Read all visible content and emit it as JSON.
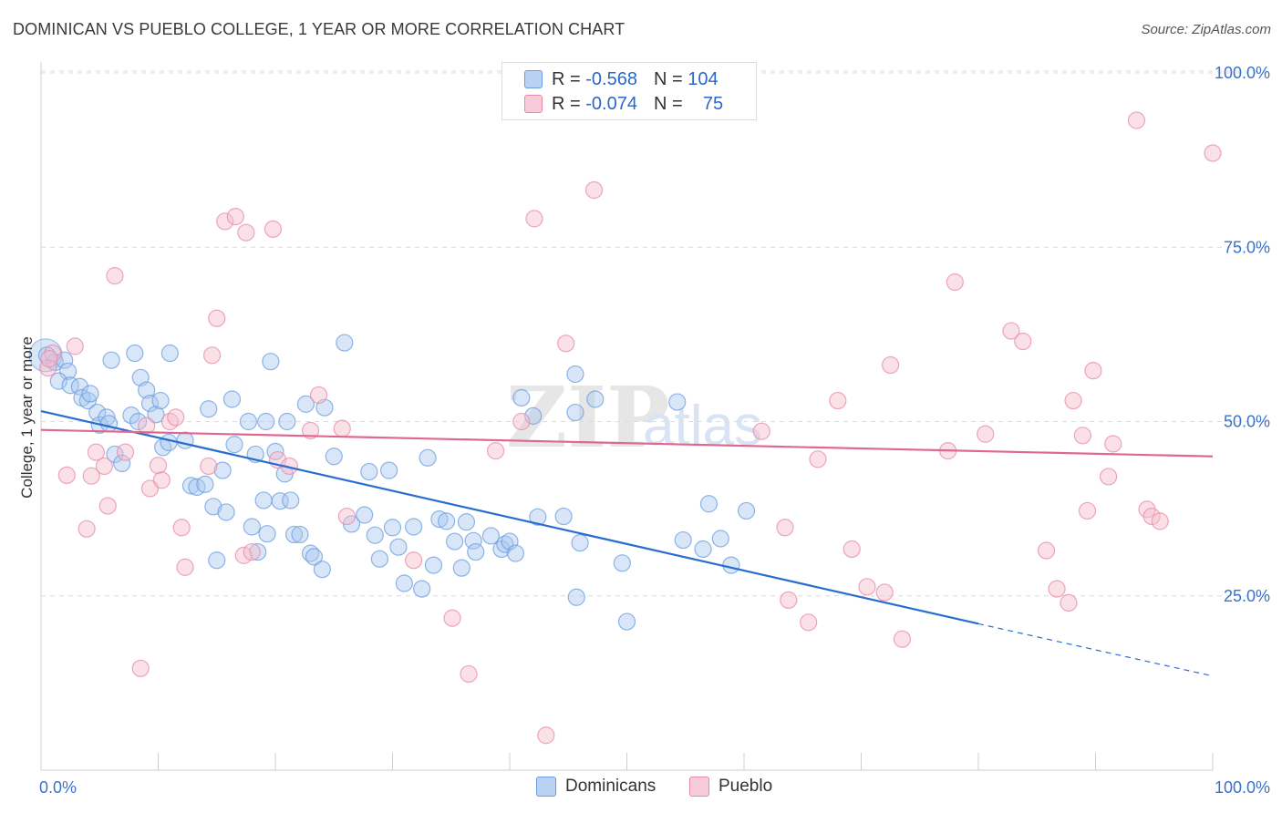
{
  "header": {
    "title": "DOMINICAN VS PUEBLO COLLEGE, 1 YEAR OR MORE CORRELATION CHART",
    "source": "Source: ZipAtlas.com"
  },
  "watermark": "ZIPatlas",
  "legend": {
    "r_label": "R =",
    "n_label": "N =",
    "rows": [
      {
        "r": "-0.568",
        "n": "104"
      },
      {
        "r": "-0.074",
        "n": "75"
      }
    ]
  },
  "colors": {
    "blue_fill": "#a9c8f0",
    "blue_stroke": "#6a9de0",
    "blue_line": "#2a6dd0",
    "pink_fill": "#f5bccd",
    "pink_stroke": "#e88aa8",
    "pink_line": "#e06890",
    "axis_text": "#3a72c8"
  },
  "chart_data": {
    "type": "scatter",
    "title": "DOMINICAN VS PUEBLO COLLEGE, 1 YEAR OR MORE CORRELATION CHART",
    "xlabel": "",
    "ylabel": "College, 1 year or more",
    "x_range": [
      0,
      100
    ],
    "y_range": [
      0,
      100
    ],
    "x_tick_labels": [
      "0.0%",
      "100.0%"
    ],
    "y_ticks": [
      {
        "value": 25,
        "label": "25.0%"
      },
      {
        "value": 50,
        "label": "50.0%"
      },
      {
        "value": 75,
        "label": "75.0%"
      },
      {
        "value": 100,
        "label": "100.0%"
      }
    ],
    "series": [
      {
        "name": "Dominicans",
        "color": "#6a9de0",
        "r": -0.568,
        "n": 104,
        "trend": {
          "x0": 0,
          "y0": 51.5,
          "x1": 80,
          "y1": 21.0,
          "dash_to_x": 100,
          "dash_to_y": 13.5
        },
        "points": [
          [
            0.5,
            59.5
          ],
          [
            1.2,
            58.5
          ],
          [
            2.0,
            58.8
          ],
          [
            2.3,
            57.2
          ],
          [
            1.5,
            55.8
          ],
          [
            2.5,
            55.2
          ],
          [
            3.3,
            55.0
          ],
          [
            3.5,
            53.4
          ],
          [
            4.0,
            53.0
          ],
          [
            4.2,
            54.0
          ],
          [
            4.8,
            51.3
          ],
          [
            5.0,
            49.5
          ],
          [
            5.6,
            50.6
          ],
          [
            5.8,
            49.7
          ],
          [
            6.3,
            45.3
          ],
          [
            6.9,
            44.0
          ],
          [
            6.0,
            58.8
          ],
          [
            8.0,
            59.8
          ],
          [
            8.5,
            56.3
          ],
          [
            9.0,
            54.5
          ],
          [
            9.3,
            52.6
          ],
          [
            7.7,
            50.9
          ],
          [
            8.3,
            50.0
          ],
          [
            9.8,
            51.0
          ],
          [
            10.2,
            53.0
          ],
          [
            10.4,
            46.3
          ],
          [
            10.9,
            47.0
          ],
          [
            11.0,
            59.8
          ],
          [
            12.3,
            47.3
          ],
          [
            12.8,
            40.8
          ],
          [
            13.3,
            40.6
          ],
          [
            14.0,
            41.0
          ],
          [
            14.3,
            51.8
          ],
          [
            14.7,
            37.8
          ],
          [
            15.0,
            30.1
          ],
          [
            15.5,
            43.0
          ],
          [
            15.8,
            37.0
          ],
          [
            16.3,
            53.2
          ],
          [
            16.5,
            46.7
          ],
          [
            17.7,
            50.0
          ],
          [
            18.0,
            34.9
          ],
          [
            18.3,
            45.3
          ],
          [
            18.5,
            31.3
          ],
          [
            19.0,
            38.7
          ],
          [
            19.2,
            50.0
          ],
          [
            19.3,
            33.9
          ],
          [
            19.6,
            58.6
          ],
          [
            20.0,
            45.7
          ],
          [
            20.4,
            38.6
          ],
          [
            20.8,
            42.5
          ],
          [
            21.0,
            50.0
          ],
          [
            21.3,
            38.7
          ],
          [
            21.6,
            33.8
          ],
          [
            22.1,
            33.8
          ],
          [
            22.6,
            52.5
          ],
          [
            23.0,
            31.1
          ],
          [
            23.3,
            30.6
          ],
          [
            24.0,
            28.8
          ],
          [
            24.2,
            52.0
          ],
          [
            25.0,
            45.0
          ],
          [
            25.9,
            61.3
          ],
          [
            26.5,
            35.3
          ],
          [
            27.6,
            36.6
          ],
          [
            28.0,
            42.8
          ],
          [
            28.5,
            33.7
          ],
          [
            28.9,
            30.3
          ],
          [
            29.7,
            43.0
          ],
          [
            30.0,
            34.8
          ],
          [
            30.5,
            32.0
          ],
          [
            31.0,
            26.8
          ],
          [
            31.8,
            34.9
          ],
          [
            32.5,
            26.0
          ],
          [
            33.0,
            44.8
          ],
          [
            33.5,
            29.4
          ],
          [
            34.0,
            36.0
          ],
          [
            34.6,
            35.7
          ],
          [
            35.3,
            32.8
          ],
          [
            35.9,
            29.0
          ],
          [
            36.3,
            35.6
          ],
          [
            36.9,
            32.9
          ],
          [
            37.1,
            31.3
          ],
          [
            38.4,
            33.6
          ],
          [
            39.3,
            31.7
          ],
          [
            39.6,
            32.4
          ],
          [
            40.0,
            32.8
          ],
          [
            40.5,
            31.1
          ],
          [
            41.0,
            53.4
          ],
          [
            42.0,
            50.8
          ],
          [
            42.4,
            36.3
          ],
          [
            44.6,
            36.4
          ],
          [
            45.6,
            56.8
          ],
          [
            45.6,
            51.3
          ],
          [
            45.7,
            24.8
          ],
          [
            46.0,
            32.6
          ],
          [
            47.3,
            53.2
          ],
          [
            49.6,
            29.7
          ],
          [
            50.0,
            21.3
          ],
          [
            54.3,
            52.8
          ],
          [
            54.8,
            33.0
          ],
          [
            56.5,
            31.7
          ],
          [
            57.0,
            38.2
          ],
          [
            58.0,
            33.2
          ],
          [
            58.9,
            29.4
          ],
          [
            60.2,
            37.2
          ]
        ]
      },
      {
        "name": "Pueblo",
        "color": "#e88aa8",
        "r": -0.074,
        "n": 75,
        "trend": {
          "x0": 0,
          "y0": 48.8,
          "x1": 100,
          "y1": 45.0
        },
        "points": [
          [
            0.6,
            57.7
          ],
          [
            1.0,
            59.8
          ],
          [
            2.2,
            42.3
          ],
          [
            2.9,
            60.8
          ],
          [
            3.9,
            34.6
          ],
          [
            4.3,
            42.2
          ],
          [
            4.7,
            45.6
          ],
          [
            5.4,
            43.6
          ],
          [
            5.7,
            37.9
          ],
          [
            6.3,
            70.9
          ],
          [
            7.2,
            45.6
          ],
          [
            8.5,
            14.6
          ],
          [
            9.0,
            49.4
          ],
          [
            9.3,
            40.4
          ],
          [
            10.0,
            43.7
          ],
          [
            10.3,
            41.6
          ],
          [
            11.0,
            50.0
          ],
          [
            11.5,
            50.6
          ],
          [
            12.0,
            34.8
          ],
          [
            12.3,
            29.1
          ],
          [
            14.3,
            43.6
          ],
          [
            14.6,
            59.5
          ],
          [
            15.0,
            64.8
          ],
          [
            15.7,
            78.7
          ],
          [
            16.6,
            79.4
          ],
          [
            17.5,
            77.1
          ],
          [
            17.3,
            30.8
          ],
          [
            18.0,
            31.3
          ],
          [
            19.8,
            77.6
          ],
          [
            20.2,
            44.5
          ],
          [
            21.2,
            43.6
          ],
          [
            23.0,
            48.7
          ],
          [
            23.7,
            53.8
          ],
          [
            25.7,
            49.0
          ],
          [
            26.1,
            36.4
          ],
          [
            31.8,
            30.1
          ],
          [
            35.1,
            21.8
          ],
          [
            36.5,
            13.8
          ],
          [
            38.8,
            45.8
          ],
          [
            41.0,
            50.0
          ],
          [
            42.1,
            79.1
          ],
          [
            43.1,
            5.0
          ],
          [
            44.8,
            61.2
          ],
          [
            47.2,
            83.2
          ],
          [
            61.5,
            48.6
          ],
          [
            63.5,
            34.8
          ],
          [
            63.8,
            24.4
          ],
          [
            65.5,
            21.2
          ],
          [
            66.3,
            44.6
          ],
          [
            68.0,
            53.0
          ],
          [
            69.2,
            31.7
          ],
          [
            70.5,
            26.3
          ],
          [
            72.0,
            25.5
          ],
          [
            72.5,
            58.1
          ],
          [
            73.5,
            18.8
          ],
          [
            78.0,
            70.0
          ],
          [
            77.4,
            45.8
          ],
          [
            80.6,
            48.2
          ],
          [
            82.8,
            63.0
          ],
          [
            83.8,
            61.5
          ],
          [
            85.8,
            31.5
          ],
          [
            86.7,
            26.0
          ],
          [
            87.7,
            24.0
          ],
          [
            88.1,
            53.0
          ],
          [
            88.9,
            48.0
          ],
          [
            89.3,
            37.2
          ],
          [
            89.8,
            57.3
          ],
          [
            91.1,
            42.1
          ],
          [
            91.5,
            46.8
          ],
          [
            93.5,
            93.2
          ],
          [
            94.4,
            37.4
          ],
          [
            94.8,
            36.4
          ],
          [
            95.5,
            35.7
          ],
          [
            100.0,
            88.5
          ],
          [
            0.7,
            59.0
          ]
        ]
      }
    ]
  }
}
